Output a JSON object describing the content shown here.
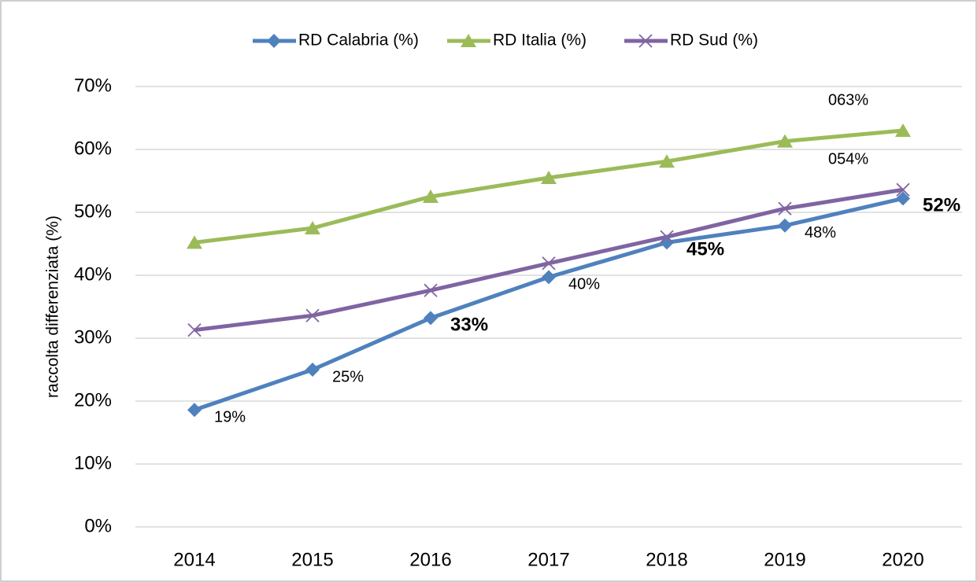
{
  "chart_data": {
    "type": "line",
    "y_label": "raccolta differenziata (%)",
    "categories": [
      "2014",
      "2015",
      "2016",
      "2017",
      "2018",
      "2019",
      "2020"
    ],
    "series": [
      {
        "name": "RD Calabria (%)",
        "color": "#4f81bd",
        "marker": "diamond",
        "values": [
          18.6,
          25.0,
          33.2,
          39.7,
          45.2,
          47.9,
          52.2
        ],
        "value_labels": [
          "19%",
          "25%",
          "33%",
          "40%",
          "45%",
          "48%",
          "52%"
        ],
        "bold_labels": [
          2,
          4,
          6
        ]
      },
      {
        "name": "RD Italia (%)",
        "color": "#9bbb59",
        "marker": "triangle",
        "values": [
          45.2,
          47.5,
          52.5,
          55.5,
          58.1,
          61.3,
          63.0
        ],
        "value_labels": [
          null,
          null,
          null,
          null,
          null,
          null,
          "063%"
        ]
      },
      {
        "name": "RD Sud (%)",
        "color": "#8064a2",
        "marker": "x",
        "values": [
          31.3,
          33.6,
          37.6,
          41.9,
          46.1,
          50.6,
          53.6
        ],
        "value_labels": [
          null,
          null,
          null,
          null,
          null,
          null,
          "054%"
        ]
      }
    ],
    "ylim": [
      0,
      70
    ],
    "yticks": [
      {
        "value": 0,
        "label": "0%"
      },
      {
        "value": 10,
        "label": "10%"
      },
      {
        "value": 20,
        "label": "20%"
      },
      {
        "value": 30,
        "label": "30%"
      },
      {
        "value": 40,
        "label": "40%"
      },
      {
        "value": 50,
        "label": "50%"
      },
      {
        "value": 60,
        "label": "60%"
      },
      {
        "value": 70,
        "label": "70%"
      }
    ],
    "grid": true,
    "legend": "top"
  }
}
